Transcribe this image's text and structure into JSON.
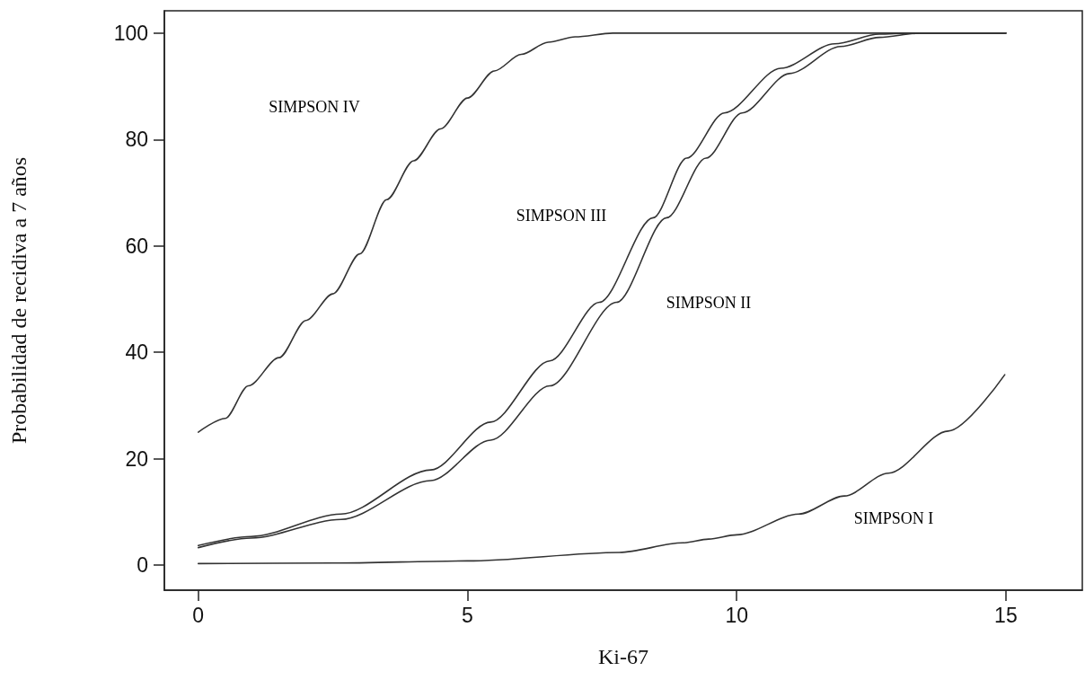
{
  "chart_data": {
    "type": "line",
    "xlabel": "Ki-67",
    "ylabel": "Probabilidad de recidiva a 7 años",
    "xlim": [
      -0.63,
      16.42
    ],
    "ylim": [
      -4.7,
      104.2
    ],
    "xticks": [
      0,
      5,
      10,
      15
    ],
    "yticks": [
      0,
      20,
      40,
      60,
      80,
      100
    ],
    "grid": false,
    "marker": "none",
    "line_style": "solid",
    "series": [
      {
        "color": "#333333",
        "x": [
          0,
          0.5,
          0.93,
          1.5,
          2,
          2.5,
          3,
          3.5,
          4,
          4.5,
          5,
          5.5,
          6,
          6.5,
          7,
          7.7,
          15
        ],
        "values": [
          25,
          27.6,
          33.7,
          39,
          46,
          51,
          58.5,
          68.7,
          76,
          82,
          87.8,
          92.9,
          96,
          98.3,
          99.3,
          100,
          100
        ]
      },
      {
        "color": "#333333",
        "x": [
          0,
          0.98,
          2.65,
          4.32,
          5.43,
          6.53,
          7.45,
          8.45,
          9.07,
          9.77,
          10.82,
          11.82,
          12.65,
          13.2,
          15
        ],
        "values": [
          3.7,
          5.4,
          9.6,
          17.9,
          26.9,
          38.4,
          49.4,
          65.3,
          76.5,
          85,
          93.4,
          98,
          99.8,
          100,
          100
        ]
      },
      {
        "color": "#333333",
        "x": [
          0,
          0.98,
          2.65,
          4.32,
          5.43,
          6.53,
          7.77,
          8.7,
          9.43,
          10.1,
          10.98,
          11.93,
          12.65,
          13.4,
          15
        ],
        "values": [
          3.3,
          5.1,
          8.6,
          15.9,
          23.5,
          33.7,
          49.4,
          65.3,
          76.5,
          85,
          92.4,
          97.5,
          99.2,
          100,
          100
        ]
      },
      {
        "color": "#333333",
        "x": [
          0,
          2.5,
          5,
          7.82,
          9,
          9.48,
          10,
          11.15,
          12,
          12.82,
          13.93,
          14.98
        ],
        "values": [
          0.3,
          0.4,
          0.8,
          2.4,
          4.2,
          4.9,
          5.7,
          9.6,
          13,
          17.3,
          25.2,
          35.8
        ]
      }
    ],
    "annotations": [
      "SIMPSON IV",
      "SIMPSON III",
      "SIMPSON II",
      "SIMPSON I"
    ]
  }
}
